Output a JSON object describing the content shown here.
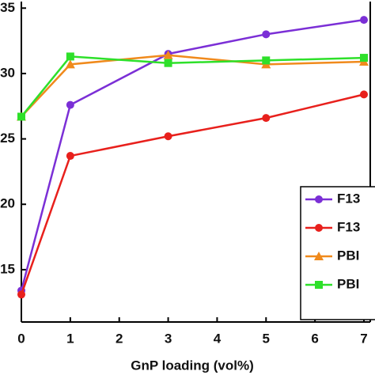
{
  "chart_data": {
    "type": "line",
    "x_label": "GnP loading (vol%)",
    "x": [
      0,
      1,
      3,
      5,
      7
    ],
    "xlim": [
      0,
      7
    ],
    "xticks": [
      0,
      1,
      2,
      3,
      4,
      5,
      6,
      7
    ],
    "ylim": [
      11,
      35.5
    ],
    "yticks": [
      15,
      20,
      25,
      30,
      35
    ],
    "series": [
      {
        "name": "F13",
        "color": "#7b2fd6",
        "marker": "circle",
        "values": [
          13.4,
          27.6,
          31.5,
          33.0,
          34.1
        ]
      },
      {
        "name": "F13",
        "color": "#e8201c",
        "marker": "circle",
        "values": [
          13.1,
          23.7,
          25.2,
          26.6,
          28.4
        ]
      },
      {
        "name": "PBI",
        "color": "#f08a1c",
        "marker": "triangle",
        "values": [
          26.7,
          30.7,
          31.4,
          30.7,
          30.9
        ]
      },
      {
        "name": "PBI",
        "color": "#2ee02a",
        "marker": "square",
        "values": [
          26.7,
          31.3,
          30.8,
          31.0,
          31.2
        ]
      }
    ]
  }
}
